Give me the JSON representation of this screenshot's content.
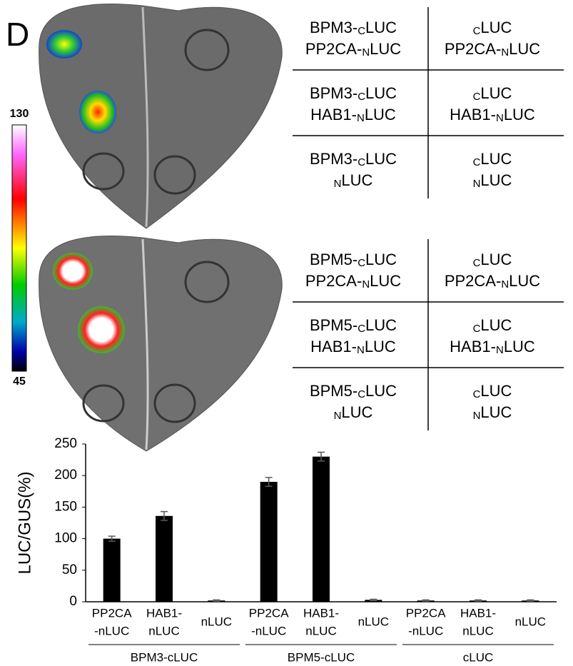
{
  "panel_label": "D",
  "colorbar": {
    "max": 130,
    "min": 45
  },
  "tables": [
    {
      "rows": [
        [
          [
            [
              "BPM3-",
              {
                "sub": "C"
              },
              "LUC"
            ],
            [
              "PP2CA-",
              {
                "sub": "N"
              },
              "LUC"
            ]
          ],
          [
            [
              {
                "sub": "C"
              },
              "LUC"
            ],
            [
              "PP2CA-",
              {
                "sub": "N"
              },
              "LUC"
            ]
          ]
        ],
        [
          [
            [
              "BPM3-",
              {
                "sub": "C"
              },
              "LUC"
            ],
            [
              "HAB1-",
              {
                "sub": "N"
              },
              "LUC"
            ]
          ],
          [
            [
              {
                "sub": "C"
              },
              "LUC"
            ],
            [
              "HAB1-",
              {
                "sub": "N"
              },
              "LUC"
            ]
          ]
        ],
        [
          [
            [
              "BPM3-",
              {
                "sub": "C"
              },
              "LUC"
            ],
            [
              {
                "sub": "N"
              },
              "LUC"
            ]
          ],
          [
            [
              {
                "sub": "C"
              },
              "LUC"
            ],
            [
              {
                "sub": "N"
              },
              "LUC"
            ]
          ]
        ]
      ]
    },
    {
      "rows": [
        [
          [
            [
              "BPM5-",
              {
                "sub": "C"
              },
              "LUC"
            ],
            [
              "PP2CA-",
              {
                "sub": "N"
              },
              "LUC"
            ]
          ],
          [
            [
              {
                "sub": "C"
              },
              "LUC"
            ],
            [
              "PP2CA-",
              {
                "sub": "N"
              },
              "LUC"
            ]
          ]
        ],
        [
          [
            [
              "BPM5-",
              {
                "sub": "C"
              },
              "LUC"
            ],
            [
              "HAB1-",
              {
                "sub": "N"
              },
              "LUC"
            ]
          ],
          [
            [
              {
                "sub": "C"
              },
              "LUC"
            ],
            [
              "HAB1-",
              {
                "sub": "N"
              },
              "LUC"
            ]
          ]
        ],
        [
          [
            [
              "BPM5-",
              {
                "sub": "C"
              },
              "LUC"
            ],
            [
              {
                "sub": "N"
              },
              "LUC"
            ]
          ],
          [
            [
              {
                "sub": "C"
              },
              "LUC"
            ],
            [
              {
                "sub": "N"
              },
              "LUC"
            ]
          ]
        ]
      ]
    }
  ],
  "chart_data": {
    "type": "bar",
    "y_label": "LUC/GUS(%)",
    "color": "#000000",
    "error_color": "#595959",
    "ylim": [
      0,
      250
    ],
    "yticks": [
      0,
      50,
      100,
      150,
      200,
      250
    ],
    "groups": [
      {
        "name": "BPM3-cLUC",
        "categories": [
          [
            "PP2CA",
            "-nLUC"
          ],
          [
            "HAB1-",
            "nLUC"
          ],
          [
            "nLUC"
          ]
        ],
        "values": [
          100,
          136,
          2
        ],
        "errors": [
          4,
          7,
          1
        ]
      },
      {
        "name": "BPM5-cLUC",
        "categories": [
          [
            "PP2CA",
            "-nLUC"
          ],
          [
            "HAB1-",
            "nLUC"
          ],
          [
            "nLUC"
          ]
        ],
        "values": [
          190,
          230,
          3
        ],
        "errors": [
          7,
          7,
          1
        ]
      },
      {
        "name": "cLUC",
        "categories": [
          [
            "PP2CA",
            "-nLUC"
          ],
          [
            "HAB1-",
            "nLUC"
          ],
          [
            "nLUC"
          ]
        ],
        "values": [
          2,
          2,
          2
        ],
        "errors": [
          1,
          1,
          1
        ]
      }
    ]
  }
}
